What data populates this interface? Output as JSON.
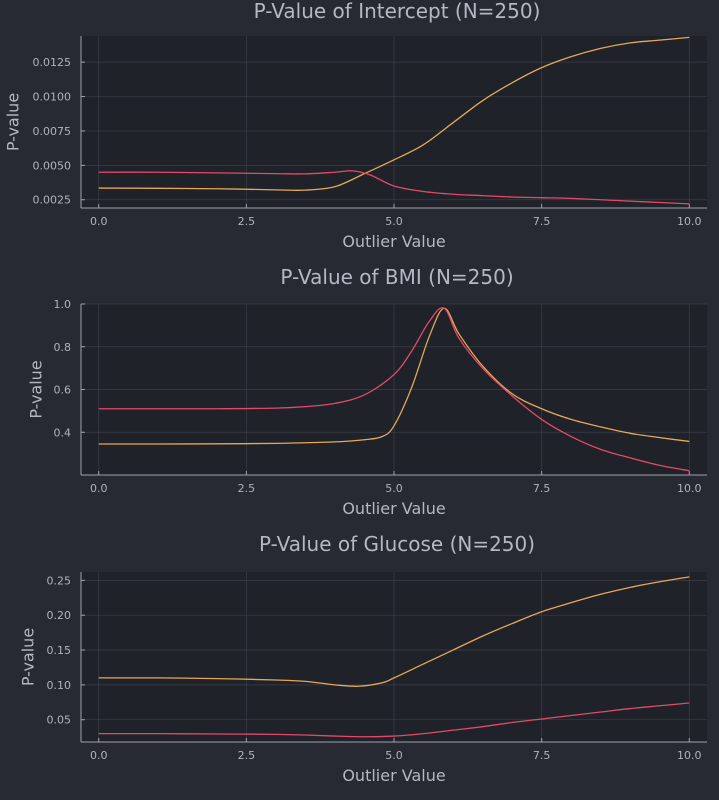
{
  "chart_data": [
    {
      "type": "line",
      "title": "P-Value of Intercept (N=250)",
      "xlabel": "Outlier Value",
      "ylabel": "P-value",
      "xlim": [
        -0.3,
        10.3
      ],
      "ylim": [
        0.0019,
        0.0144
      ],
      "xticks": [
        0,
        2.5,
        5,
        7.5,
        10
      ],
      "xtick_labels": [
        "0.0",
        "2.5",
        "5.0",
        "7.5",
        "10.0"
      ],
      "yticks": [
        0.0025,
        0.005,
        0.0075,
        0.01,
        0.0125
      ],
      "ytick_labels": [
        "0.0025",
        "0.0050",
        "0.0075",
        "0.0100",
        "0.0125"
      ],
      "grid": true,
      "series": [
        {
          "color": "#e5a857",
          "x": [
            0,
            1,
            2,
            3,
            3.5,
            4,
            4.5,
            5,
            5.5,
            6,
            6.5,
            7,
            7.5,
            8,
            8.5,
            9,
            9.5,
            10
          ],
          "values": [
            0.00335,
            0.00333,
            0.0033,
            0.00322,
            0.0032,
            0.00345,
            0.0044,
            0.0054,
            0.0065,
            0.0081,
            0.0097,
            0.011,
            0.0121,
            0.0129,
            0.0135,
            0.0139,
            0.0141,
            0.0143
          ]
        },
        {
          "color": "#e24a6b",
          "x": [
            0,
            1,
            2,
            3,
            3.5,
            4,
            4.3,
            4.6,
            5,
            5.5,
            6,
            6.5,
            7,
            7.5,
            8,
            8.5,
            9,
            9.5,
            10
          ],
          "values": [
            0.0045,
            0.0045,
            0.00445,
            0.0044,
            0.00438,
            0.0045,
            0.0046,
            0.0043,
            0.0035,
            0.0031,
            0.0029,
            0.0028,
            0.0027,
            0.00265,
            0.0026,
            0.0025,
            0.0024,
            0.0023,
            0.0022
          ]
        }
      ]
    },
    {
      "type": "line",
      "title": "P-Value of BMI (N=250)",
      "xlabel": "Outlier Value",
      "ylabel": "P-value",
      "xlim": [
        -0.3,
        10.3
      ],
      "ylim": [
        0.2,
        1.0
      ],
      "xticks": [
        0,
        2.5,
        5,
        7.5,
        10
      ],
      "xtick_labels": [
        "0.0",
        "2.5",
        "5.0",
        "7.5",
        "10.0"
      ],
      "yticks": [
        0.4,
        0.6,
        0.8,
        1.0
      ],
      "ytick_labels": [
        "0.4",
        "0.6",
        "0.8",
        "1.0"
      ],
      "grid": true,
      "series": [
        {
          "color": "#e5a857",
          "x": [
            0,
            1,
            2,
            3,
            4,
            4.5,
            4.8,
            5,
            5.3,
            5.6,
            5.85,
            6.1,
            6.5,
            7,
            7.5,
            8,
            8.5,
            9,
            9.5,
            10
          ],
          "values": [
            0.345,
            0.345,
            0.346,
            0.348,
            0.355,
            0.365,
            0.38,
            0.43,
            0.61,
            0.85,
            0.98,
            0.86,
            0.71,
            0.58,
            0.51,
            0.46,
            0.425,
            0.395,
            0.375,
            0.357
          ]
        },
        {
          "color": "#e24a6b",
          "x": [
            0,
            1,
            2,
            3,
            3.5,
            4,
            4.5,
            5,
            5.3,
            5.6,
            5.85,
            6.1,
            6.5,
            7,
            7.5,
            8,
            8.5,
            9,
            9.5,
            10
          ],
          "values": [
            0.51,
            0.51,
            0.51,
            0.513,
            0.52,
            0.535,
            0.575,
            0.67,
            0.78,
            0.92,
            0.98,
            0.84,
            0.7,
            0.57,
            0.46,
            0.38,
            0.32,
            0.28,
            0.245,
            0.22
          ]
        }
      ]
    },
    {
      "type": "line",
      "title": "P-Value of Glucose (N=250)",
      "xlabel": "Outlier Value",
      "ylabel": "P-value",
      "xlim": [
        -0.3,
        10.3
      ],
      "ylim": [
        0.018,
        0.262
      ],
      "xticks": [
        0,
        2.5,
        5,
        7.5,
        10
      ],
      "xtick_labels": [
        "0.0",
        "2.5",
        "5.0",
        "7.5",
        "10.0"
      ],
      "yticks": [
        0.05,
        0.1,
        0.15,
        0.2,
        0.25
      ],
      "ytick_labels": [
        "0.05",
        "0.10",
        "0.15",
        "0.20",
        "0.25"
      ],
      "grid": true,
      "series": [
        {
          "color": "#e5a857",
          "x": [
            0,
            1,
            2,
            3,
            3.5,
            4,
            4.4,
            4.8,
            5,
            5.5,
            6,
            6.5,
            7,
            7.5,
            8,
            8.5,
            9,
            9.5,
            10
          ],
          "values": [
            0.11,
            0.11,
            0.109,
            0.107,
            0.105,
            0.1,
            0.098,
            0.103,
            0.11,
            0.13,
            0.15,
            0.17,
            0.188,
            0.205,
            0.218,
            0.23,
            0.24,
            0.248,
            0.255
          ]
        },
        {
          "color": "#e24a6b",
          "x": [
            0,
            1,
            2,
            3,
            3.5,
            4,
            4.5,
            5,
            5.5,
            6,
            6.5,
            7,
            7.5,
            8,
            8.5,
            9,
            9.5,
            10
          ],
          "values": [
            0.03,
            0.03,
            0.0295,
            0.029,
            0.028,
            0.0265,
            0.0255,
            0.0265,
            0.03,
            0.035,
            0.04,
            0.046,
            0.051,
            0.056,
            0.061,
            0.066,
            0.07,
            0.074
          ]
        }
      ]
    }
  ]
}
